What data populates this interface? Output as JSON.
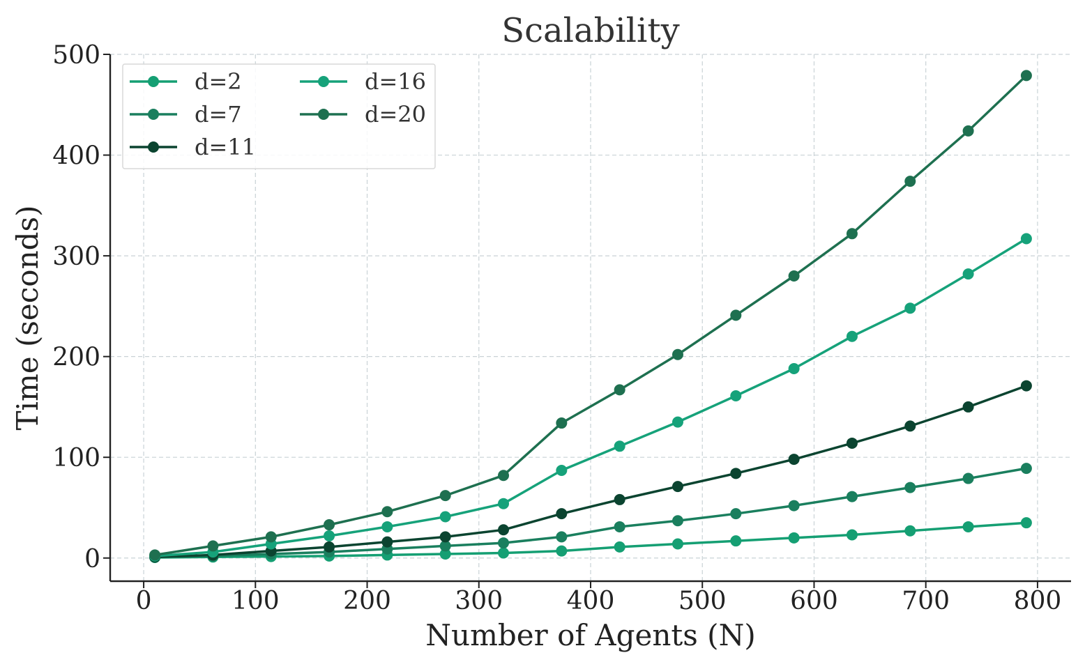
{
  "chart_data": {
    "type": "line",
    "title": "Scalability",
    "xlabel": "Number of Agents (N)",
    "ylabel": "Time (seconds)",
    "xlim": [
      -30,
      830
    ],
    "ylim": [
      -23,
      500
    ],
    "xticks": [
      0,
      100,
      200,
      300,
      400,
      500,
      600,
      700,
      800
    ],
    "yticks": [
      0,
      100,
      200,
      300,
      400,
      500
    ],
    "grid": true,
    "legend_position": "top-left",
    "x": [
      10,
      62,
      114,
      166,
      218,
      270,
      322,
      374,
      426,
      478,
      530,
      582,
      634,
      686,
      738,
      790
    ],
    "series": [
      {
        "name": "d=2",
        "color": "#159f73",
        "values": [
          0.5,
          1,
          1.5,
          2,
          3,
          4,
          5,
          7,
          11,
          14,
          17,
          20,
          23,
          27,
          31,
          35
        ]
      },
      {
        "name": "d=7",
        "color": "#1a7f5e",
        "values": [
          1,
          2,
          4,
          6,
          9,
          12,
          15,
          21,
          31,
          37,
          44,
          52,
          61,
          70,
          79,
          89
        ]
      },
      {
        "name": "d=11",
        "color": "#0b4430",
        "values": [
          1,
          3,
          7,
          11,
          16,
          21,
          28,
          44,
          58,
          71,
          84,
          98,
          114,
          131,
          150,
          171
        ]
      },
      {
        "name": "d=16",
        "color": "#16a27a",
        "values": [
          2,
          6,
          14,
          22,
          31,
          41,
          54,
          87,
          111,
          135,
          161,
          188,
          220,
          248,
          282,
          317
        ]
      },
      {
        "name": "d=20",
        "color": "#1e7050",
        "values": [
          3,
          12,
          21,
          33,
          46,
          62,
          82,
          134,
          167,
          202,
          241,
          280,
          322,
          374,
          424,
          479
        ]
      }
    ]
  }
}
